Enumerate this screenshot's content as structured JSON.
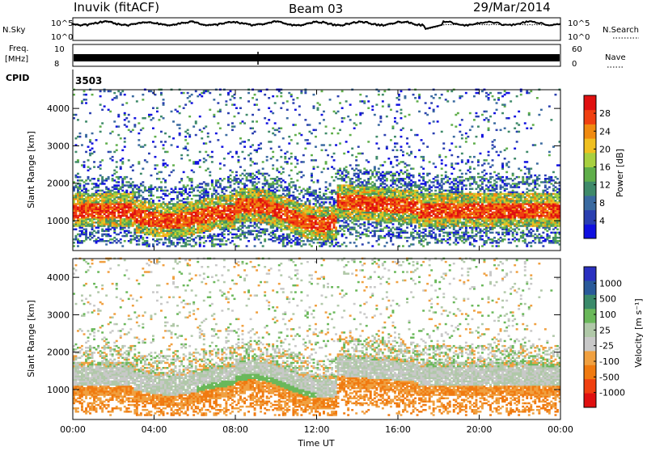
{
  "header": {
    "station": "Inuvik (fitACF)",
    "beam": "Beam 03",
    "date": "29/Mar/2014"
  },
  "top_panels": {
    "nsky_label": "N.Sky",
    "nsky_top": "10^5",
    "nsky_bottom": "10^0",
    "nsearch_label": "N.Search",
    "nsearch_top": "10^5",
    "nsearch_bottom": "10^0",
    "freq_label": "Freq.",
    "freq_unit": "[MHz]",
    "freq_top": "10",
    "freq_bottom": "8",
    "nave_label": "Nave",
    "nave_top": "60",
    "nave_bottom": "0",
    "cpid_label": "CPID",
    "cpid_value": "3503"
  },
  "colors": {
    "power": [
      "#1010e0",
      "#2a3fb0",
      "#3a6aa0",
      "#3f8a6a",
      "#5fae4a",
      "#a8d040",
      "#f0c020",
      "#f08a10",
      "#f04010",
      "#e01010"
    ],
    "velocity": [
      "#2a30c0",
      "#2a5a9a",
      "#3a8a6a",
      "#6ab85a",
      "#b0c8a8",
      "#c8c8c8",
      "#f0a040",
      "#f07a10",
      "#f04010",
      "#e01010"
    ]
  },
  "chart_data": [
    {
      "type": "heatmap",
      "name": "power",
      "ylabel": "Slant Range [km]",
      "xlabel": "Time UT",
      "x_ticks": [
        "00:00",
        "04:00",
        "08:00",
        "12:00",
        "16:00",
        "20:00",
        "00:00"
      ],
      "y_ticks": [
        "1000",
        "2000",
        "3000",
        "4000"
      ],
      "ylim": [
        200,
        4500
      ],
      "xlim_hours": [
        0,
        24
      ],
      "colorbar_label": "Power [dB]",
      "colorbar_ticks": [
        "4",
        "8",
        "12",
        "16",
        "20",
        "24",
        "28"
      ],
      "colorbar_range": [
        0,
        30
      ]
    },
    {
      "type": "heatmap",
      "name": "velocity",
      "ylabel": "Slant Range [km]",
      "xlabel": "Time UT",
      "x_ticks": [
        "00:00",
        "04:00",
        "08:00",
        "12:00",
        "16:00",
        "20:00",
        "00:00"
      ],
      "y_ticks": [
        "1000",
        "2000",
        "3000",
        "4000"
      ],
      "ylim": [
        200,
        4500
      ],
      "xlim_hours": [
        0,
        24
      ],
      "colorbar_label": "Velocity [m s⁻¹]",
      "colorbar_ticks": [
        "1000",
        "500",
        "100",
        "25",
        "-25",
        "-100",
        "-500",
        "-1000"
      ]
    }
  ],
  "axis": {
    "xlabel": "Time UT"
  }
}
